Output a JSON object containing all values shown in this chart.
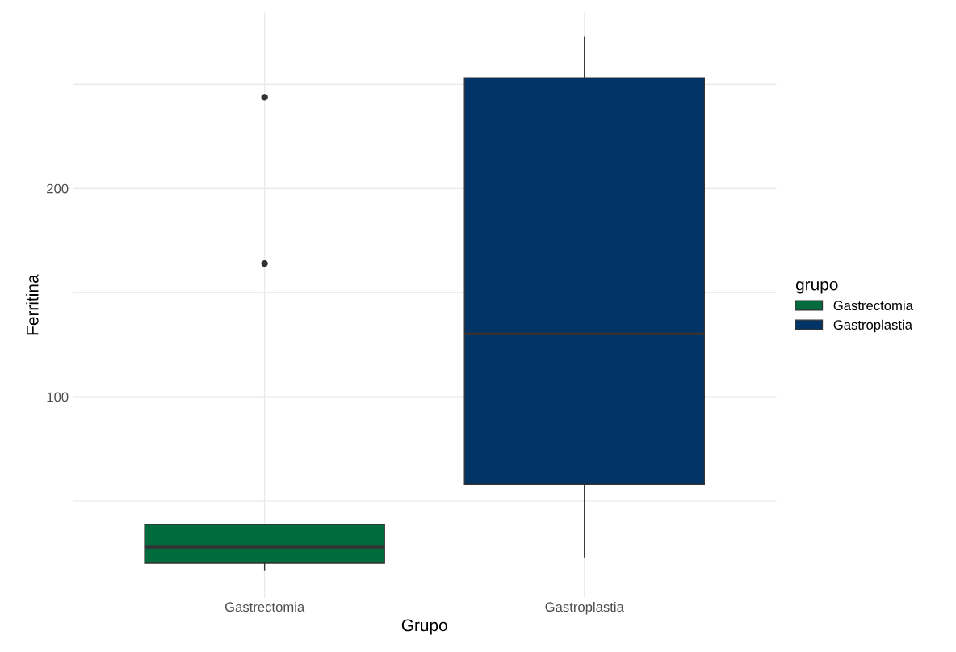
{
  "chart_data": {
    "type": "box",
    "xlabel": "Grupo",
    "ylabel": "Ferritina",
    "legend_title": "grupo",
    "categories": [
      "Gastrectomia",
      "Gastroplastia"
    ],
    "series": [
      {
        "name": "Gastrectomia",
        "color": "#006b3c",
        "boxes": [
          {
            "low": 16.7,
            "q1": 20.2,
            "median": 27.9,
            "q3": 38.8,
            "high": 38.8,
            "outliers": [
              164.0,
              243.8
            ]
          },
          null
        ]
      },
      {
        "name": "Gastroplastia",
        "color": "#003366",
        "boxes": [
          null,
          {
            "low": 22.9,
            "q1": 58.1,
            "median": 130.2,
            "q3": 253.1,
            "high": 272.5
          }
        ]
      }
    ],
    "ylim": [
      3.5,
      284.5
    ],
    "yticks": [
      {
        "value": 50,
        "label": null
      },
      100,
      {
        "value": 150,
        "label": null
      },
      200,
      {
        "value": 250,
        "label": null
      }
    ],
    "grid": true,
    "legend": "right"
  }
}
